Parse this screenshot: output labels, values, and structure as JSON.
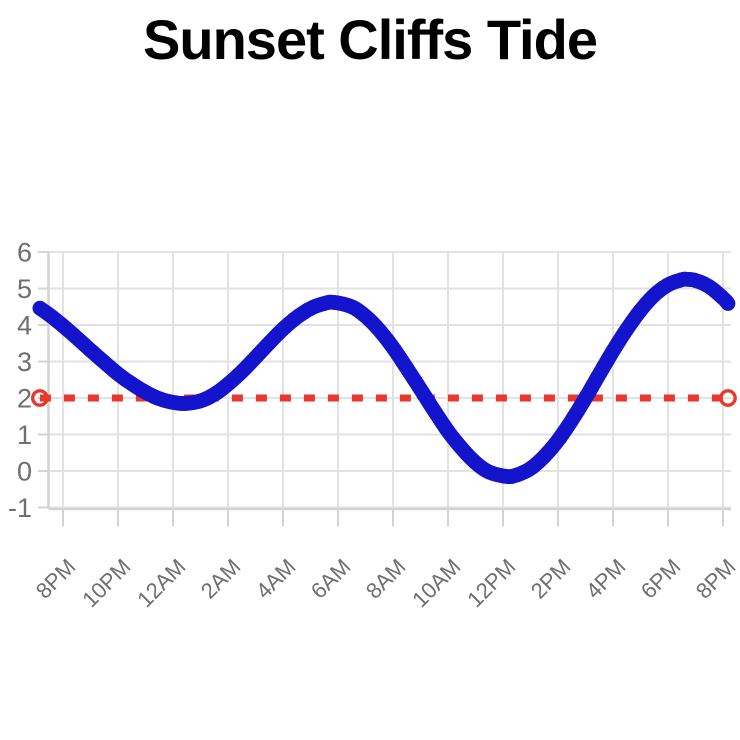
{
  "header": {
    "title": "Sunset Cliffs Tide"
  },
  "chart_data": {
    "type": "scatter",
    "title": "Sunset Cliffs Tide",
    "legend": "none",
    "grid": true,
    "background": "#ffffff",
    "x_axis": {
      "tick_labels": [
        "8PM",
        "10PM",
        "12AM",
        "2AM",
        "4AM",
        "6AM",
        "8AM",
        "10AM",
        "12PM",
        "2PM",
        "4PM",
        "6PM",
        "8PM"
      ],
      "tick_hours": [
        20,
        22,
        24,
        26,
        28,
        30,
        32,
        34,
        36,
        38,
        40,
        42,
        44
      ],
      "label_rotation_deg": -45
    },
    "y_axis": {
      "ticks": [
        6,
        5,
        4,
        3,
        2,
        1,
        0,
        -1
      ],
      "range": [
        -1,
        6
      ]
    },
    "series": [
      {
        "name": "tide_height",
        "type": "dense_scatter_curve",
        "marker": "open-circle",
        "color": "#1414CD",
        "points": [
          [
            19.16,
            4.46
          ],
          [
            19.5,
            4.28
          ],
          [
            20,
            3.98
          ],
          [
            20.5,
            3.65
          ],
          [
            21,
            3.31
          ],
          [
            21.5,
            2.98
          ],
          [
            22,
            2.66
          ],
          [
            22.5,
            2.39
          ],
          [
            23,
            2.16
          ],
          [
            23.5,
            1.98
          ],
          [
            24,
            1.88
          ],
          [
            24.45,
            1.85
          ],
          [
            25,
            1.92
          ],
          [
            25.5,
            2.1
          ],
          [
            26,
            2.38
          ],
          [
            26.5,
            2.72
          ],
          [
            27,
            3.11
          ],
          [
            27.5,
            3.51
          ],
          [
            28,
            3.89
          ],
          [
            28.5,
            4.21
          ],
          [
            29,
            4.45
          ],
          [
            29.5,
            4.59
          ],
          [
            29.85,
            4.62
          ],
          [
            30.5,
            4.5
          ],
          [
            31,
            4.24
          ],
          [
            31.5,
            3.86
          ],
          [
            32,
            3.38
          ],
          [
            32.5,
            2.82
          ],
          [
            33,
            2.24
          ],
          [
            33.5,
            1.65
          ],
          [
            34,
            1.09
          ],
          [
            34.5,
            0.62
          ],
          [
            35,
            0.23
          ],
          [
            35.5,
            -0.03
          ],
          [
            36.15,
            -0.15
          ],
          [
            36.5,
            -0.11
          ],
          [
            37,
            0.07
          ],
          [
            37.5,
            0.4
          ],
          [
            38,
            0.84
          ],
          [
            38.5,
            1.39
          ],
          [
            39,
            2.0
          ],
          [
            39.5,
            2.65
          ],
          [
            40,
            3.29
          ],
          [
            40.5,
            3.88
          ],
          [
            41,
            4.4
          ],
          [
            41.5,
            4.82
          ],
          [
            42,
            5.1
          ],
          [
            42.5,
            5.24
          ],
          [
            42.7,
            5.25
          ],
          [
            43,
            5.22
          ],
          [
            43.5,
            5.05
          ],
          [
            44,
            4.74
          ],
          [
            44.18,
            4.59
          ]
        ],
        "extremes": [
          {
            "time_label": "12:27AM",
            "value": 1.85,
            "kind": "low"
          },
          {
            "time_label": "5:51AM",
            "value": 4.62,
            "kind": "high"
          },
          {
            "time_label": "12:09PM",
            "value": -0.15,
            "kind": "low"
          },
          {
            "time_label": "6:42PM",
            "value": 5.25,
            "kind": "high"
          }
        ]
      },
      {
        "name": "threshold_line",
        "type": "horizontal_dashed_line",
        "value": 2,
        "marker_ends": "open-circle",
        "color": "#E8382C"
      }
    ],
    "colors": {
      "series_blue": "#1414CD",
      "threshold_red": "#E8382C",
      "gridline": "#E2E2E2",
      "axis_line": "#D3D3D3",
      "tick_label": "#6F6F6F",
      "title": "#000000"
    }
  }
}
